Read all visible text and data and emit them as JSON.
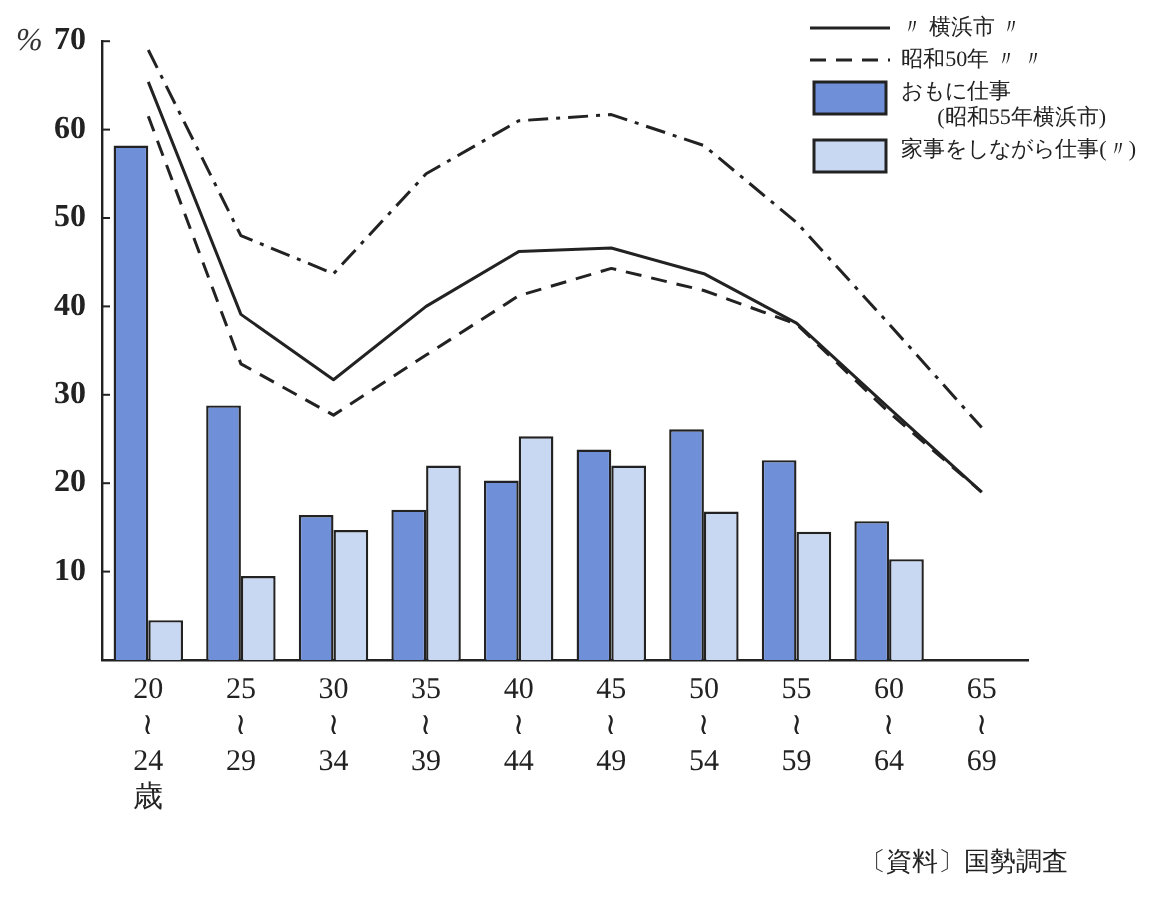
{
  "chart_data": {
    "type": "bar",
    "ylabel": "%",
    "categories": [
      "20\n≀\n24\n歳",
      "25\n≀\n29",
      "30\n≀\n34",
      "35\n≀\n39",
      "40\n≀\n44",
      "45\n≀\n49",
      "50\n≀\n54",
      "55\n≀\n59",
      "60\n≀\n64",
      "65\n≀\n69"
    ],
    "series": [
      {
        "type": "line",
        "line_style": "dashdot",
        "color": "#222222",
        "values": [
          69,
          48,
          43.7,
          55,
          61,
          61.7,
          58.2,
          49.5,
          38,
          26.3
        ]
      },
      {
        "type": "line",
        "line_style": "solid",
        "name": "〃 横浜市 〃",
        "color": "#222222",
        "values": [
          65.4,
          39.1,
          31.7,
          40,
          46.2,
          46.6,
          43.7,
          38.1,
          28.5,
          19
        ]
      },
      {
        "type": "line",
        "line_style": "dashed",
        "name": "昭和50年 〃 〃",
        "color": "#222222",
        "values": [
          61.5,
          33.5,
          27.7,
          34.5,
          41.2,
          44.3,
          41.8,
          38,
          28,
          19
        ]
      },
      {
        "type": "bar",
        "name": "おもに仕事\n(昭和55年横浜市)",
        "color": "#6f8fd8",
        "values": [
          58.2,
          28.8,
          16.4,
          17,
          20.3,
          23.8,
          26.1,
          22.6,
          15.7,
          null
        ]
      },
      {
        "type": "bar",
        "name": "家事をしながら仕事(〃)",
        "color": "#c9d8f2",
        "values": [
          4.5,
          9.5,
          14.7,
          22,
          25.3,
          22,
          16.8,
          14.5,
          11.4,
          null
        ]
      }
    ],
    "ylim": [
      0,
      70
    ],
    "yticks": [
      {
        "value": 10,
        "label": "10"
      },
      {
        "value": 20,
        "label": "20"
      },
      {
        "value": 30,
        "label": "30"
      },
      {
        "value": 40,
        "label": "40"
      },
      {
        "value": 50,
        "label": "50"
      },
      {
        "value": 60,
        "label": "60"
      },
      {
        "value": 70,
        "label": "70"
      }
    ],
    "grid": false,
    "legend": "top right",
    "marker": "none",
    "annotations": [
      "〔資料〕国勢調査"
    ]
  }
}
